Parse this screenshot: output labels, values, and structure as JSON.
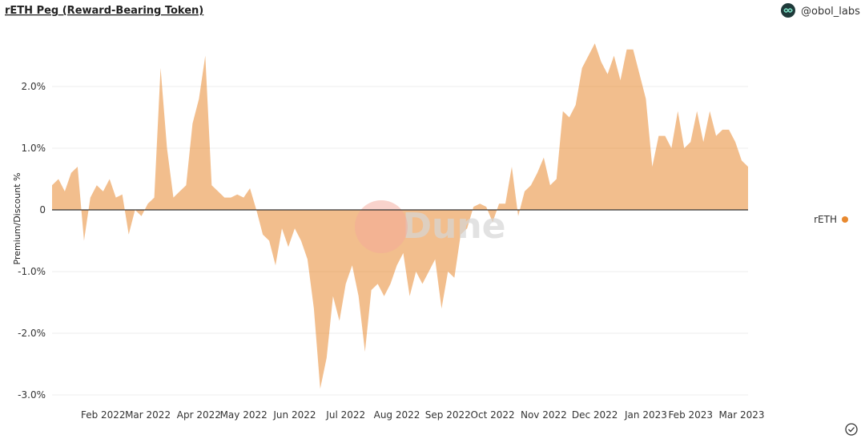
{
  "chart_data": {
    "type": "area",
    "title": "rETH Peg (Reward-Bearing Token)",
    "author": "@obol_labs",
    "y_label": "Premium/Discount %",
    "watermark": "Dune",
    "categories": [
      null,
      null,
      null,
      null,
      null,
      null,
      null,
      null,
      "Feb 2022",
      null,
      null,
      null,
      null,
      null,
      null,
      "Mar 2022",
      null,
      null,
      null,
      null,
      null,
      null,
      null,
      "Apr 2022",
      null,
      null,
      null,
      null,
      null,
      null,
      "May 2022",
      null,
      null,
      null,
      null,
      null,
      null,
      null,
      "Jun 2022",
      null,
      null,
      null,
      null,
      null,
      null,
      null,
      "Jul 2022",
      null,
      null,
      null,
      null,
      null,
      null,
      null,
      "Aug 2022",
      null,
      null,
      null,
      null,
      null,
      null,
      null,
      "Sep 2022",
      null,
      null,
      null,
      null,
      null,
      null,
      "Oct 2022",
      null,
      null,
      null,
      null,
      null,
      null,
      null,
      "Nov 2022",
      null,
      null,
      null,
      null,
      null,
      null,
      null,
      "Dec 2022",
      null,
      null,
      null,
      null,
      null,
      null,
      null,
      "Jan 2023",
      null,
      null,
      null,
      null,
      null,
      null,
      "Feb 2023",
      null,
      null,
      null,
      null,
      null,
      null,
      null,
      "Mar 2023",
      null
    ],
    "series": [
      {
        "name": "rETH",
        "color": "#e8892f",
        "values": [
          0.4,
          0.5,
          0.3,
          0.6,
          0.7,
          -0.5,
          0.2,
          0.4,
          0.3,
          0.5,
          0.2,
          0.25,
          -0.4,
          0.0,
          -0.1,
          0.1,
          0.2,
          2.3,
          1.0,
          0.2,
          0.3,
          0.4,
          1.4,
          1.8,
          2.5,
          0.4,
          0.3,
          0.2,
          0.2,
          0.25,
          0.2,
          0.35,
          0.0,
          -0.4,
          -0.5,
          -0.9,
          -0.3,
          -0.6,
          -0.3,
          -0.5,
          -0.8,
          -1.6,
          -2.9,
          -2.4,
          -1.4,
          -1.8,
          -1.2,
          -0.9,
          -1.4,
          -2.3,
          -1.3,
          -1.2,
          -1.4,
          -1.2,
          -0.9,
          -0.7,
          -1.4,
          -1.0,
          -1.2,
          -1.0,
          -0.8,
          -1.6,
          -1.0,
          -1.1,
          -0.4,
          -0.3,
          0.05,
          0.1,
          0.05,
          -0.2,
          0.1,
          0.1,
          0.7,
          -0.1,
          0.3,
          0.4,
          0.6,
          0.85,
          0.4,
          0.5,
          1.6,
          1.5,
          1.7,
          2.3,
          2.5,
          2.7,
          2.4,
          2.2,
          2.5,
          2.1,
          2.6,
          2.6,
          2.2,
          1.8,
          0.7,
          1.2,
          1.2,
          1.0,
          1.6,
          1.0,
          1.1,
          1.6,
          1.1,
          1.6,
          1.2,
          1.3,
          1.3,
          1.1,
          0.8,
          0.7
        ]
      }
    ],
    "ylim": [
      -3.1,
      2.9
    ],
    "yticks": [
      {
        "value": -3,
        "label": "-3.0%"
      },
      {
        "value": -2,
        "label": "-2.0%"
      },
      {
        "value": -1,
        "label": "-1.0%"
      },
      0,
      {
        "value": 1,
        "label": "1.0%"
      },
      {
        "value": 2,
        "label": "2.0%"
      }
    ],
    "grid": true,
    "legend": "right"
  }
}
